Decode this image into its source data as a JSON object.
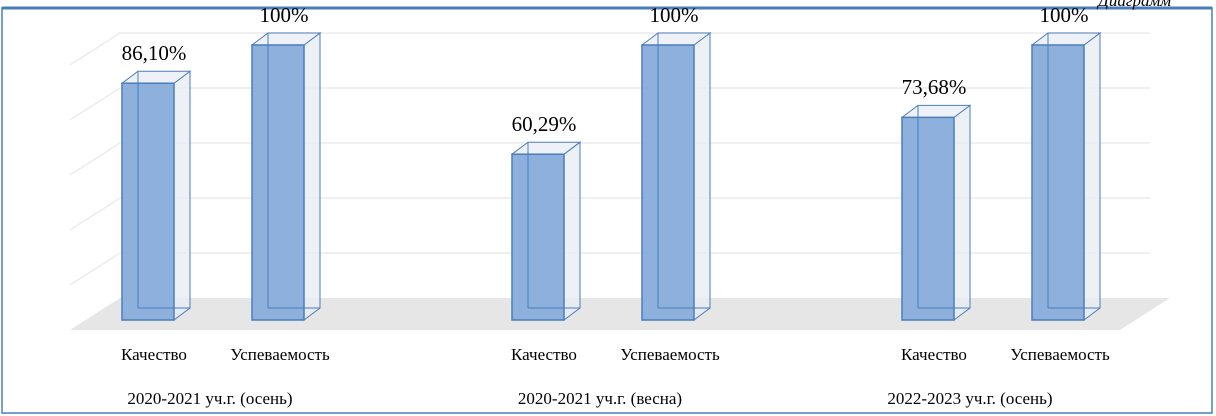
{
  "caption": "Диаграмм",
  "chart_data": {
    "type": "bar",
    "categories": [
      "2020-2021 уч.г. (осень)",
      "2020-2021 уч.г. (весна)",
      "2022-2023 уч.г. (осень)"
    ],
    "series": [
      {
        "name": "Качество",
        "color": "#8eb0dc",
        "values": [
          86.1,
          60.29,
          73.68
        ],
        "value_labels": [
          "86,10%",
          "60,29%",
          "73,68%"
        ]
      },
      {
        "name": "Успеваемость",
        "color": "#8eb0dc",
        "values": [
          100,
          100,
          100
        ],
        "value_labels": [
          "100%",
          "100%",
          "100%"
        ]
      }
    ],
    "ylim": [
      0,
      100
    ],
    "yticks": [
      0,
      20,
      40,
      60,
      80,
      100
    ],
    "grid": true
  }
}
